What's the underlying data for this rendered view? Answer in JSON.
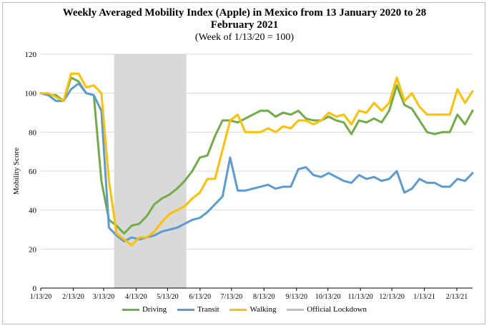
{
  "chart_data": {
    "type": "line",
    "title": "Weekly Averaged Mobility Index (Apple) in Mexico from 13 January 2020 to 28 February 2021",
    "subtitle": "(Week of 1/13/20 = 100)",
    "xlabel": "",
    "ylabel": "Mobility Score",
    "ylim": [
      0,
      120
    ],
    "yticks": [
      0,
      20,
      40,
      60,
      80,
      100,
      120
    ],
    "x_tick_labels": [
      "1/13/20",
      "2/13/20",
      "3/13/20",
      "4/13/20",
      "5/13/20",
      "6/13/20",
      "7/13/20",
      "8/13/20",
      "9/13/20",
      "10/13/20",
      "11/13/20",
      "12/13/20",
      "1/13/21",
      "2/13/21"
    ],
    "x_start": "2020-01-13",
    "x_end": "2021-02-28",
    "lockdown_band": {
      "name": "Official Lockdown",
      "start": "2020-03-23",
      "end": "2020-05-31",
      "color": "#d9d9d9"
    },
    "series": [
      {
        "name": "Driving",
        "color": "#70ad47",
        "values": [
          100,
          99,
          99,
          96,
          108,
          106,
          100,
          99,
          55,
          35,
          32,
          28,
          32,
          33,
          37,
          43,
          46,
          48,
          51,
          55,
          60,
          67,
          68,
          78,
          86,
          86,
          85,
          87,
          89,
          91,
          91,
          88,
          90,
          89,
          91,
          87,
          86,
          86,
          88,
          86,
          85,
          79,
          86,
          85,
          87,
          85,
          91,
          104,
          94,
          92,
          86,
          80,
          79,
          80,
          80,
          89,
          84,
          91
        ]
      },
      {
        "name": "Transit",
        "color": "#5b9bd5",
        "values": [
          100,
          99,
          96,
          96,
          102,
          105,
          100,
          99,
          91,
          31,
          27,
          24,
          26,
          25,
          26,
          27,
          29,
          30,
          31,
          33,
          35,
          36,
          39,
          43,
          47,
          67,
          50,
          50,
          51,
          52,
          53,
          51,
          52,
          52,
          61,
          62,
          58,
          57,
          59,
          57,
          55,
          54,
          58,
          56,
          57,
          55,
          56,
          60,
          49,
          51,
          56,
          54,
          54,
          52,
          52,
          56,
          55,
          59
        ]
      },
      {
        "name": "Walking",
        "color": "#ffc000",
        "values": [
          100,
          100,
          98,
          96,
          110,
          110,
          103,
          104,
          100,
          55,
          28,
          25,
          22,
          26,
          26,
          29,
          34,
          38,
          40,
          42,
          46,
          49,
          56,
          56,
          71,
          86,
          89,
          80,
          80,
          80,
          82,
          80,
          83,
          82,
          86,
          86,
          84,
          86,
          90,
          88,
          89,
          84,
          91,
          90,
          95,
          91,
          95,
          108,
          96,
          100,
          93,
          89,
          89,
          89,
          89,
          102,
          95,
          101
        ]
      }
    ]
  },
  "legend": {
    "driving": "Driving",
    "transit": "Transit",
    "walking": "Walking",
    "lockdown": "Official Lockdown"
  },
  "colors": {
    "driving": "#70ad47",
    "transit": "#5b9bd5",
    "walking": "#ffc000",
    "lockdown": "#d9d9d9",
    "axis": "#000000",
    "grid": "#d9d9d9"
  }
}
